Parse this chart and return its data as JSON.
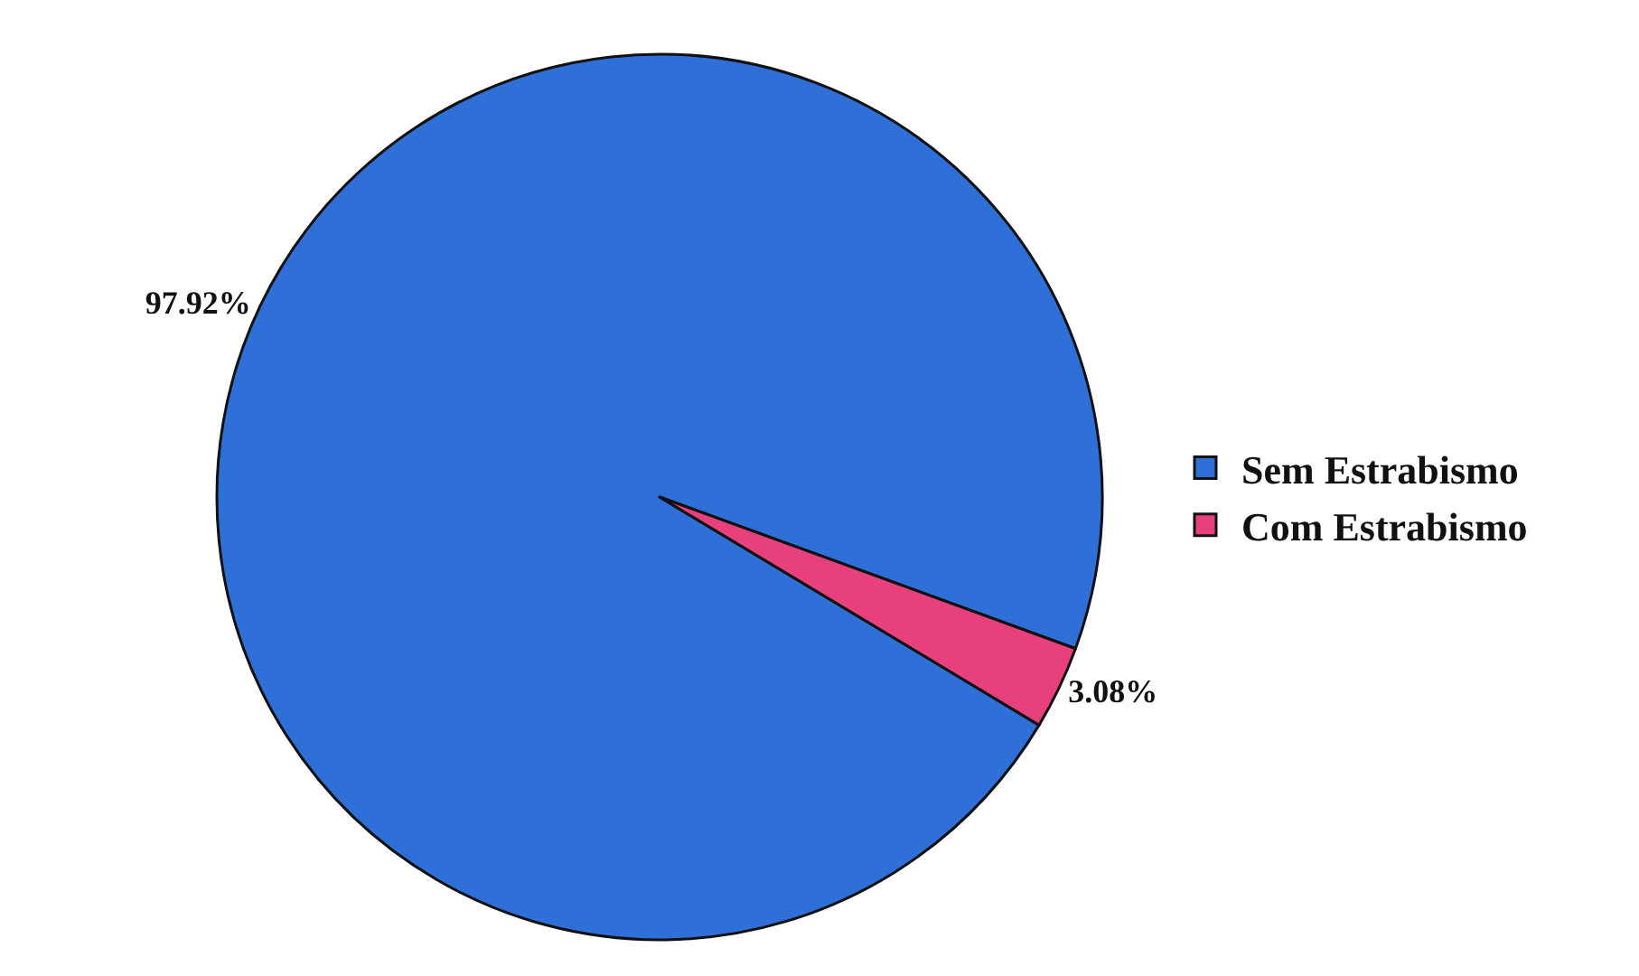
{
  "chart_data": {
    "type": "pie",
    "categories": [
      "Sem Estrabismo",
      "Com Estrabismo"
    ],
    "values": [
      97.92,
      3.08
    ],
    "colors": [
      "#2f6fd8",
      "#e8407c"
    ],
    "value_labels": [
      "97.92%",
      "3.08%"
    ],
    "legend": "right"
  }
}
